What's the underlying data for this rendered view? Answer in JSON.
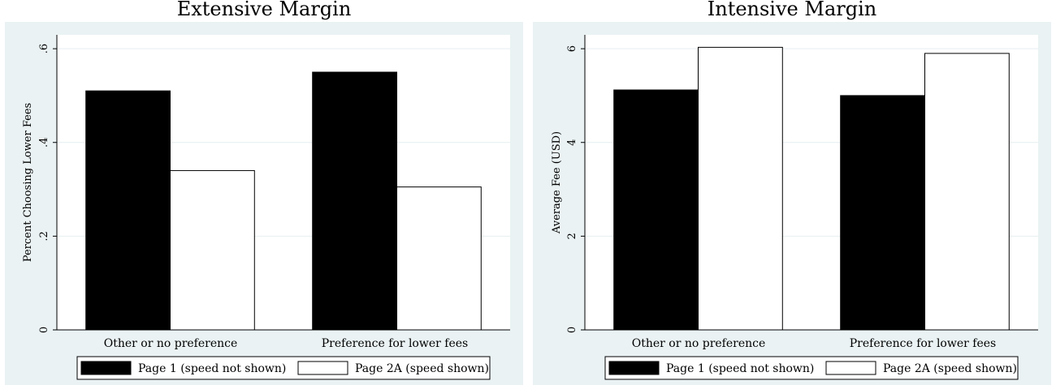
{
  "colors": {
    "panel_background": "#eaf2f3",
    "plot_background": "#ffffff",
    "gridline": "#e6eef0",
    "page1_fill": "#000000",
    "page2a_fill": "#ffffff",
    "bar_stroke": "#000000"
  },
  "legend": {
    "items": [
      {
        "label": "Page 1 (speed not shown)",
        "fill": "#000000"
      },
      {
        "label": "Page 2A (speed shown)",
        "fill": "#ffffff"
      }
    ]
  },
  "chart_data": [
    {
      "type": "bar",
      "title": "Extensive Margin",
      "ylabel": "Percent Choosing Lower Fees",
      "xlabel": "",
      "categories": [
        "Other or no preference",
        "Preference for lower fees"
      ],
      "series": [
        {
          "name": "Page 1 (speed not shown)",
          "values": [
            0.51,
            0.55
          ]
        },
        {
          "name": "Page 2A (speed shown)",
          "values": [
            0.34,
            0.305
          ]
        }
      ],
      "ylim": [
        0,
        0.6
      ],
      "yticks": [
        0,
        0.2,
        0.4,
        0.6
      ],
      "ytick_labels": [
        "0",
        ".2",
        ".4",
        ".6"
      ],
      "grid": true,
      "legend_position": "bottom"
    },
    {
      "type": "bar",
      "title": "Intensive Margin",
      "ylabel": "Average Fee (USD)",
      "xlabel": "",
      "categories": [
        "Other or no preference",
        "Preference for lower fees"
      ],
      "series": [
        {
          "name": "Page 1 (speed not shown)",
          "values": [
            5.12,
            5.0
          ]
        },
        {
          "name": "Page 2A (speed shown)",
          "values": [
            6.03,
            5.9
          ]
        }
      ],
      "ylim": [
        0,
        6
      ],
      "yticks": [
        0,
        2,
        4,
        6
      ],
      "ytick_labels": [
        "0",
        "2",
        "4",
        "6"
      ],
      "grid": true,
      "legend_position": "bottom"
    }
  ]
}
